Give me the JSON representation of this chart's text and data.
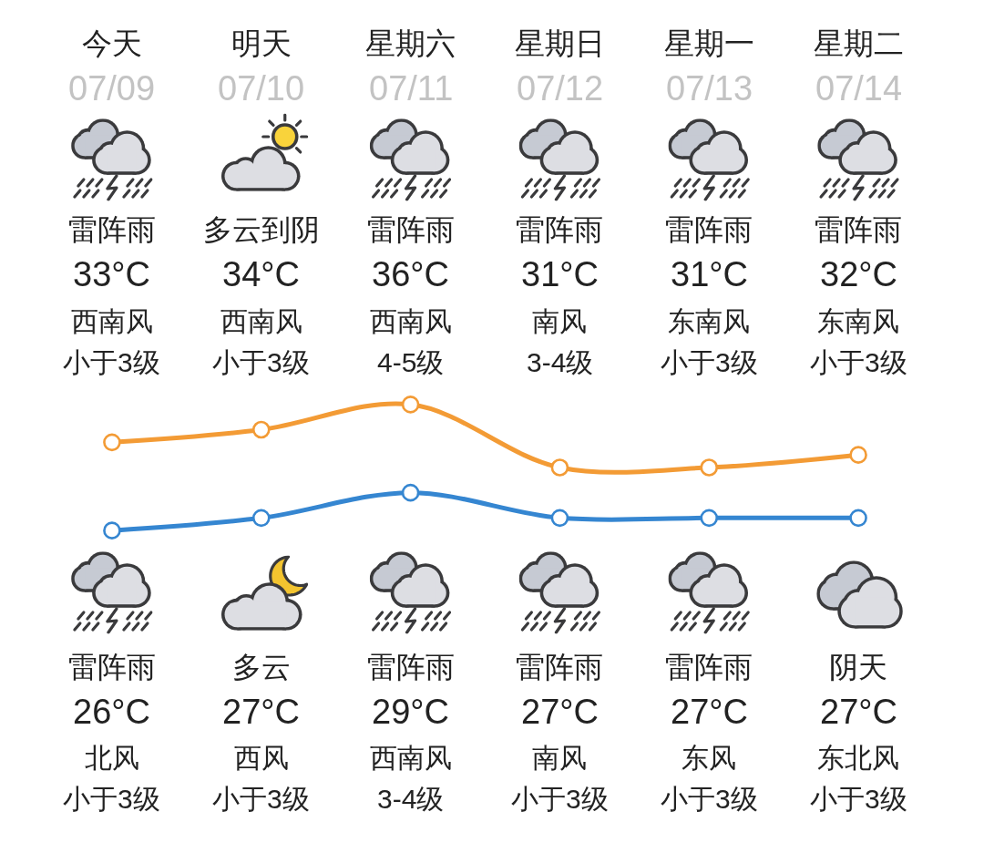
{
  "chart_data": {
    "type": "line",
    "categories": [
      "今天",
      "明天",
      "星期六",
      "星期日",
      "星期一",
      "星期二"
    ],
    "series": [
      {
        "color": "#f39b35",
        "values": [
          33,
          34,
          36,
          31,
          31,
          32
        ],
        "value_labels": [
          "33°C",
          "34°C",
          "36°C",
          "31°C",
          "31°C",
          "32°C"
        ]
      },
      {
        "color": "#3586d1",
        "values": [
          26,
          27,
          29,
          27,
          27,
          27
        ],
        "value_labels": [
          "26°C",
          "27°C",
          "29°C",
          "27°C",
          "27°C",
          "27°C"
        ]
      }
    ],
    "marker": "circle",
    "line_style": "solid",
    "tick_labels": "x",
    "annotations": [
      "07/09",
      "雷阵雨",
      "西南风",
      "小于3级",
      "雷阵雨",
      "北风",
      "小于3级",
      "07/10",
      "多云到阴",
      "西南风",
      "小于3级",
      "多云",
      "西风",
      "小于3级",
      "07/11",
      "雷阵雨",
      "西南风",
      "4-5级",
      "雷阵雨",
      "西南风",
      "3-4级",
      "07/12",
      "雷阵雨",
      "南风",
      "3-4级",
      "雷阵雨",
      "南风",
      "小于3级",
      "07/13",
      "雷阵雨",
      "东南风",
      "小于3级",
      "雷阵雨",
      "东风",
      "小于3级",
      "07/14",
      "雷阵雨",
      "东南风",
      "小于3级",
      "阴天",
      "东北风",
      "小于3级"
    ]
  }
}
